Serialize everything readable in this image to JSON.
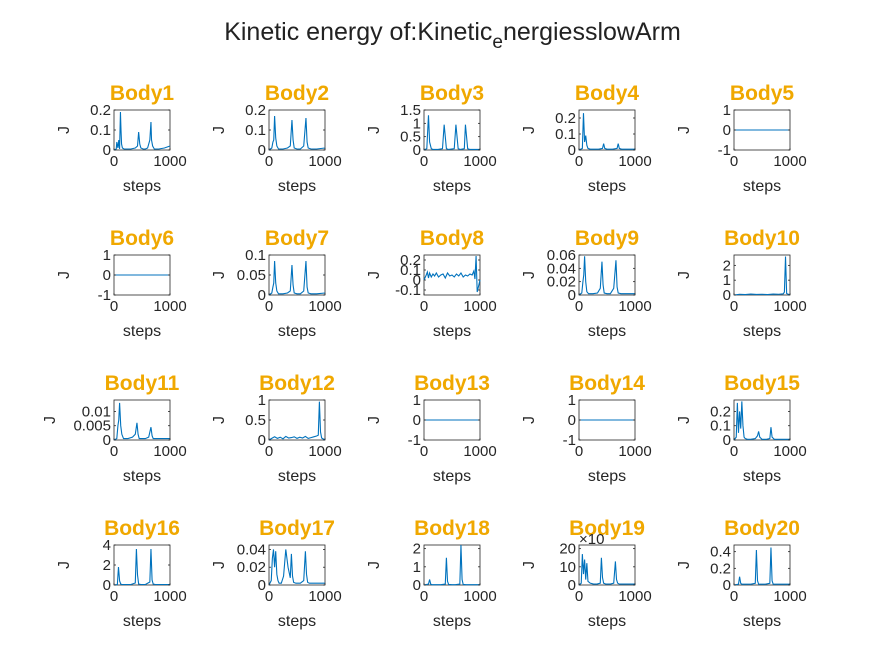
{
  "figure": {
    "title_pre": "Kinetic energy of:Kinetic",
    "title_sub": "e",
    "title_post": "nergiesslowArm",
    "title_color": "#222222",
    "subplot_title_color": "#F0A800",
    "line_color": "#0072BD"
  },
  "chart_data": [
    {
      "type": "line",
      "title": "Body1",
      "xlabel": "steps",
      "ylabel": "J",
      "xlim": [
        0,
        1000
      ],
      "ylim": [
        0,
        0.2
      ],
      "yticks": [
        "0",
        "0.1",
        "0.2"
      ],
      "xticks": [
        "0",
        "1000"
      ],
      "exponent": "",
      "x": [
        0,
        40,
        50,
        70,
        85,
        100,
        115,
        125,
        135,
        150,
        180,
        230,
        300,
        380,
        420,
        440,
        460,
        480,
        520,
        560,
        600,
        640,
        660,
        670,
        690,
        720,
        800,
        900,
        1000
      ],
      "y": [
        0,
        0.005,
        0.04,
        0.01,
        0.05,
        0.005,
        0.19,
        0.1,
        0.03,
        0.01,
        0.005,
        0.005,
        0.005,
        0.01,
        0.02,
        0.09,
        0.03,
        0.01,
        0.005,
        0.005,
        0.01,
        0.05,
        0.14,
        0.05,
        0.02,
        0.005,
        0.005,
        0.01,
        0.02
      ]
    },
    {
      "type": "line",
      "title": "Body2",
      "xlabel": "steps",
      "ylabel": "J",
      "xlim": [
        0,
        1000
      ],
      "ylim": [
        0,
        0.2
      ],
      "yticks": [
        "0",
        "0.1",
        "0.2"
      ],
      "xticks": [
        "0",
        "1000"
      ],
      "exponent": "",
      "x": [
        0,
        50,
        70,
        85,
        100,
        120,
        140,
        170,
        250,
        330,
        380,
        410,
        430,
        450,
        500,
        560,
        620,
        660,
        680,
        700,
        750,
        850,
        1000
      ],
      "y": [
        0,
        0.01,
        0.04,
        0.05,
        0.17,
        0.06,
        0.02,
        0.005,
        0.005,
        0.01,
        0.02,
        0.15,
        0.05,
        0.01,
        0.005,
        0.005,
        0.02,
        0.16,
        0.04,
        0.01,
        0.005,
        0.005,
        0.01
      ]
    },
    {
      "type": "line",
      "title": "Body3",
      "xlabel": "steps",
      "ylabel": "J",
      "xlim": [
        0,
        1000
      ],
      "ylim": [
        0,
        1.5
      ],
      "yticks": [
        "0",
        "0.5",
        "1",
        "1.5"
      ],
      "xticks": [
        "0",
        "1000"
      ],
      "exponent": "",
      "x": [
        0,
        50,
        80,
        100,
        130,
        160,
        250,
        330,
        360,
        400,
        440,
        540,
        570,
        610,
        650,
        720,
        740,
        780,
        820,
        900,
        1000
      ],
      "y": [
        0,
        0.05,
        1.3,
        0.3,
        0.05,
        0.02,
        0.02,
        0.05,
        0.95,
        0.05,
        0.02,
        0.05,
        0.95,
        0.05,
        0.02,
        0.05,
        0.95,
        0.05,
        0.02,
        0.02,
        0.02
      ]
    },
    {
      "type": "line",
      "title": "Body4",
      "xlabel": "steps",
      "ylabel": "J",
      "xlim": [
        0,
        1000
      ],
      "ylim": [
        0,
        0.25
      ],
      "yticks": [
        "0",
        "0.1",
        "0.2"
      ],
      "xticks": [
        "0",
        "1000"
      ],
      "exponent": "",
      "x": [
        0,
        60,
        80,
        100,
        120,
        140,
        160,
        200,
        280,
        350,
        420,
        440,
        460,
        500,
        600,
        680,
        700,
        720,
        760,
        850,
        1000
      ],
      "y": [
        0,
        0.01,
        0.23,
        0.05,
        0.09,
        0.03,
        0.01,
        0.005,
        0.005,
        0.005,
        0.01,
        0.04,
        0.01,
        0.005,
        0.005,
        0.01,
        0.04,
        0.01,
        0.005,
        0.005,
        0.005
      ]
    },
    {
      "type": "line",
      "title": "Body5",
      "xlabel": "steps",
      "ylabel": "J",
      "xlim": [
        0,
        1000
      ],
      "ylim": [
        -1,
        1
      ],
      "yticks": [
        "-1",
        "0",
        "1"
      ],
      "xticks": [
        "0",
        "1000"
      ],
      "exponent": "",
      "x": [
        0,
        1000
      ],
      "y": [
        0,
        0
      ]
    },
    {
      "type": "line",
      "title": "Body6",
      "xlabel": "steps",
      "ylabel": "J",
      "xlim": [
        0,
        1000
      ],
      "ylim": [
        -1,
        1
      ],
      "yticks": [
        "-1",
        "0",
        "1"
      ],
      "xticks": [
        "0",
        "1000"
      ],
      "exponent": "",
      "x": [
        0,
        1000
      ],
      "y": [
        0,
        0
      ]
    },
    {
      "type": "line",
      "title": "Body7",
      "xlabel": "steps",
      "ylabel": "J",
      "xlim": [
        0,
        1000
      ],
      "ylim": [
        0,
        0.1
      ],
      "yticks": [
        "0",
        "0.05",
        "0.1"
      ],
      "xticks": [
        "0",
        "1000"
      ],
      "exponent": "",
      "x": [
        0,
        50,
        70,
        85,
        100,
        120,
        140,
        170,
        250,
        330,
        380,
        410,
        430,
        450,
        500,
        560,
        620,
        660,
        680,
        700,
        750,
        850,
        1000
      ],
      "y": [
        0,
        0.005,
        0.02,
        0.03,
        0.085,
        0.03,
        0.01,
        0.003,
        0.003,
        0.005,
        0.01,
        0.075,
        0.025,
        0.005,
        0.003,
        0.003,
        0.01,
        0.085,
        0.02,
        0.005,
        0.003,
        0.003,
        0.005
      ]
    },
    {
      "type": "line",
      "title": "Body8",
      "xlabel": "steps",
      "ylabel": "J",
      "xlim": [
        0,
        1000
      ],
      "ylim": [
        -0.15,
        0.25
      ],
      "yticks": [
        "-0.1",
        "0",
        "0.1",
        "0.2"
      ],
      "xticks": [
        "0",
        "1000"
      ],
      "exponent": "",
      "x": [
        0,
        40,
        60,
        80,
        100,
        130,
        160,
        190,
        220,
        260,
        300,
        340,
        380,
        420,
        460,
        500,
        540,
        580,
        620,
        660,
        700,
        740,
        780,
        820,
        860,
        890,
        910,
        930,
        950,
        1000
      ],
      "y": [
        0,
        0.05,
        0.08,
        0.02,
        0.07,
        0.03,
        0.06,
        0.04,
        0.07,
        0.03,
        0.05,
        0.06,
        0.02,
        0.07,
        0.04,
        0.05,
        0.03,
        0.06,
        0.04,
        0.07,
        0.03,
        0.05,
        0.04,
        0.06,
        0.05,
        0.09,
        0.01,
        0.24,
        -0.12,
        0
      ]
    },
    {
      "type": "line",
      "title": "Body9",
      "xlabel": "steps",
      "ylabel": "J",
      "xlim": [
        0,
        1000
      ],
      "ylim": [
        0,
        0.06
      ],
      "yticks": [
        "0",
        "0.02",
        "0.04",
        "0.06"
      ],
      "xticks": [
        "0",
        "1000"
      ],
      "exponent": "",
      "x": [
        0,
        50,
        70,
        85,
        100,
        120,
        140,
        170,
        250,
        330,
        380,
        410,
        430,
        450,
        500,
        560,
        620,
        660,
        680,
        700,
        750,
        850,
        1000
      ],
      "y": [
        0,
        0.003,
        0.02,
        0.03,
        0.058,
        0.02,
        0.005,
        0.002,
        0.002,
        0.003,
        0.01,
        0.05,
        0.015,
        0.003,
        0.002,
        0.002,
        0.01,
        0.052,
        0.012,
        0.003,
        0.002,
        0.002,
        0.002
      ]
    },
    {
      "type": "line",
      "title": "Body10",
      "xlabel": "steps",
      "ylabel": "J",
      "xlim": [
        0,
        1000
      ],
      "ylim": [
        0,
        2.7
      ],
      "yticks": [
        "0",
        "1",
        "2"
      ],
      "xticks": [
        "0",
        "1000"
      ],
      "exponent": "",
      "x": [
        0,
        100,
        200,
        300,
        400,
        500,
        600,
        700,
        800,
        880,
        900,
        920,
        940,
        1000
      ],
      "y": [
        0,
        0.05,
        0.03,
        0.06,
        0.04,
        0.05,
        0.03,
        0.06,
        0.05,
        0.08,
        0.2,
        2.6,
        0.1,
        0
      ]
    },
    {
      "type": "line",
      "title": "Body11",
      "xlabel": "steps",
      "ylabel": "J",
      "xlim": [
        0,
        1000
      ],
      "ylim": [
        0,
        0.014
      ],
      "yticks": [
        "0",
        "0.005",
        "0.01"
      ],
      "xticks": [
        "0",
        "1000"
      ],
      "exponent": "",
      "x": [
        0,
        50,
        70,
        85,
        100,
        120,
        140,
        170,
        250,
        330,
        380,
        410,
        430,
        450,
        500,
        560,
        620,
        660,
        680,
        700,
        750,
        850,
        1000
      ],
      "y": [
        0,
        0.0005,
        0.005,
        0.007,
        0.013,
        0.005,
        0.002,
        0.0005,
        0.0005,
        0.001,
        0.002,
        0.006,
        0.002,
        0.0005,
        0.0005,
        0.0005,
        0.001,
        0.0045,
        0.0015,
        0.0005,
        0.0005,
        0.0005,
        0.0005
      ]
    },
    {
      "type": "line",
      "title": "Body12",
      "xlabel": "steps",
      "ylabel": "J",
      "xlim": [
        0,
        1000
      ],
      "ylim": [
        0,
        1
      ],
      "yticks": [
        "0",
        "0.5",
        "1"
      ],
      "xticks": [
        "0",
        "1000"
      ],
      "exponent": "",
      "x": [
        0,
        60,
        100,
        150,
        200,
        250,
        300,
        350,
        400,
        450,
        500,
        550,
        600,
        650,
        700,
        750,
        800,
        850,
        880,
        900,
        920,
        940,
        1000
      ],
      "y": [
        0,
        0.05,
        0.08,
        0.04,
        0.07,
        0.03,
        0.09,
        0.05,
        0.06,
        0.08,
        0.04,
        0.07,
        0.05,
        0.09,
        0.04,
        0.06,
        0.08,
        0.1,
        0.12,
        0.96,
        0.2,
        0.05,
        0
      ]
    },
    {
      "type": "line",
      "title": "Body13",
      "xlabel": "steps",
      "ylabel": "J",
      "xlim": [
        0,
        1000
      ],
      "ylim": [
        -1,
        1
      ],
      "yticks": [
        "-1",
        "0",
        "1"
      ],
      "xticks": [
        "0",
        "1000"
      ],
      "exponent": "",
      "x": [
        0,
        1000
      ],
      "y": [
        0,
        0
      ]
    },
    {
      "type": "line",
      "title": "Body14",
      "xlabel": "steps",
      "ylabel": "J",
      "xlim": [
        0,
        1000
      ],
      "ylim": [
        -1,
        1
      ],
      "yticks": [
        "-1",
        "0",
        "1"
      ],
      "xticks": [
        "0",
        "1000"
      ],
      "exponent": "",
      "x": [
        0,
        1000
      ],
      "y": [
        0,
        0
      ]
    },
    {
      "type": "line",
      "title": "Body15",
      "xlabel": "steps",
      "ylabel": "J",
      "xlim": [
        0,
        1000
      ],
      "ylim": [
        0,
        0.28
      ],
      "yticks": [
        "0",
        "0.1",
        "0.2"
      ],
      "xticks": [
        "0",
        "1000"
      ],
      "exponent": "",
      "x": [
        0,
        40,
        60,
        80,
        100,
        120,
        140,
        160,
        180,
        200,
        240,
        300,
        380,
        420,
        440,
        460,
        500,
        580,
        640,
        660,
        680,
        720,
        850,
        1000
      ],
      "y": [
        0,
        0.02,
        0.26,
        0.05,
        0.2,
        0.08,
        0.27,
        0.1,
        0.02,
        0.01,
        0.005,
        0.005,
        0.01,
        0.03,
        0.06,
        0.02,
        0.005,
        0.005,
        0.01,
        0.09,
        0.02,
        0.005,
        0.005,
        0.005
      ]
    },
    {
      "type": "line",
      "title": "Body16",
      "xlabel": "steps",
      "ylabel": "J",
      "xlim": [
        0,
        1000
      ],
      "ylim": [
        0,
        4
      ],
      "yticks": [
        "0",
        "2",
        "4"
      ],
      "xticks": [
        "0",
        "1000"
      ],
      "exponent": "",
      "x": [
        0,
        60,
        80,
        100,
        120,
        140,
        200,
        300,
        380,
        400,
        420,
        440,
        480,
        560,
        640,
        660,
        680,
        700,
        740,
        850,
        1000
      ],
      "y": [
        0,
        0.05,
        1.8,
        0.4,
        0.1,
        0.05,
        0.05,
        0.05,
        0.2,
        3.6,
        1,
        0.1,
        0.05,
        0.05,
        0.3,
        3.6,
        0.5,
        0.1,
        0.05,
        0.05,
        0.05
      ]
    },
    {
      "type": "line",
      "title": "Body17",
      "xlabel": "steps",
      "ylabel": "J",
      "xlim": [
        0,
        1000
      ],
      "ylim": [
        0,
        0.045
      ],
      "yticks": [
        "0",
        "0.02",
        "0.04"
      ],
      "xticks": [
        "0",
        "1000"
      ],
      "exponent": "",
      "x": [
        0,
        40,
        60,
        80,
        100,
        120,
        140,
        160,
        180,
        220,
        260,
        300,
        340,
        380,
        400,
        420,
        440,
        480,
        560,
        620,
        650,
        670,
        690,
        720,
        850,
        1000
      ],
      "y": [
        0,
        0.005,
        0.03,
        0.04,
        0.02,
        0.038,
        0.012,
        0.005,
        0.002,
        0.002,
        0.01,
        0.04,
        0.02,
        0.008,
        0.035,
        0.01,
        0.003,
        0.002,
        0.002,
        0.005,
        0.038,
        0.012,
        0.003,
        0.002,
        0.002,
        0.002
      ]
    },
    {
      "type": "line",
      "title": "Body18",
      "xlabel": "steps",
      "ylabel": "J",
      "xlim": [
        0,
        1000
      ],
      "ylim": [
        0,
        2.2
      ],
      "yticks": [
        "0",
        "1",
        "2"
      ],
      "xticks": [
        "0",
        "1000"
      ],
      "exponent": "",
      "x": [
        0,
        80,
        100,
        120,
        140,
        200,
        300,
        380,
        400,
        420,
        440,
        500,
        560,
        640,
        660,
        680,
        700,
        750,
        850,
        1000
      ],
      "y": [
        0,
        0.05,
        0.3,
        0.05,
        0.02,
        0.02,
        0.02,
        0.05,
        1.5,
        0.2,
        0.03,
        0.02,
        0.02,
        0.05,
        2.2,
        0.3,
        0.03,
        0.02,
        0.02,
        0.02
      ]
    },
    {
      "type": "line",
      "title": "Body19",
      "xlabel": "steps",
      "ylabel": "J",
      "xlim": [
        0,
        1000
      ],
      "ylim": [
        0,
        22
      ],
      "yticks": [
        "0",
        "10",
        "20"
      ],
      "xticks": [
        "0",
        "1000"
      ],
      "exponent": "×10",
      "x": [
        0,
        40,
        60,
        80,
        100,
        120,
        140,
        160,
        200,
        260,
        320,
        380,
        400,
        420,
        440,
        480,
        560,
        620,
        650,
        670,
        690,
        720,
        850,
        1000
      ],
      "y": [
        0,
        1,
        17,
        6,
        14,
        3,
        12,
        2,
        1,
        0.5,
        0.5,
        1,
        15,
        4,
        1,
        0.5,
        0.5,
        1,
        13,
        3,
        1,
        0.5,
        0.5,
        0.5
      ]
    },
    {
      "type": "line",
      "title": "Body20",
      "xlabel": "steps",
      "ylabel": "J",
      "xlim": [
        0,
        1000
      ],
      "ylim": [
        0,
        0.48
      ],
      "yticks": [
        "0",
        "0.2",
        "0.4"
      ],
      "xticks": [
        "0",
        "1000"
      ],
      "exponent": "",
      "x": [
        0,
        80,
        100,
        120,
        140,
        200,
        300,
        380,
        400,
        420,
        440,
        500,
        560,
        640,
        660,
        680,
        700,
        750,
        850,
        1000
      ],
      "y": [
        0,
        0.01,
        0.1,
        0.02,
        0.01,
        0.01,
        0.01,
        0.02,
        0.42,
        0.05,
        0.01,
        0.01,
        0.01,
        0.02,
        0.45,
        0.05,
        0.01,
        0.01,
        0.01,
        0.01
      ]
    }
  ]
}
